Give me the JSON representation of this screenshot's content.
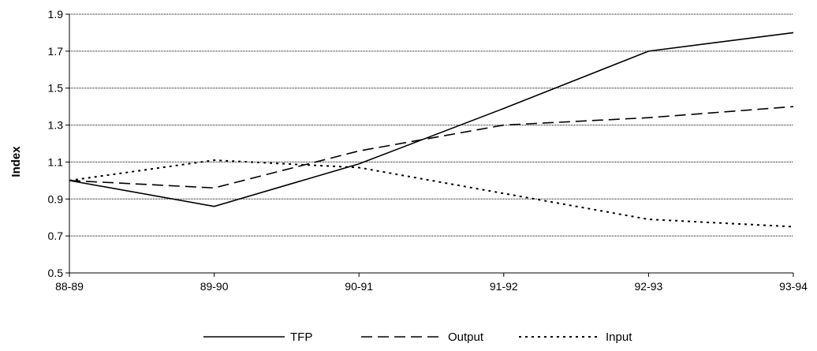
{
  "chart_data": {
    "type": "line",
    "title": "",
    "xlabel": "",
    "ylabel": "Index",
    "categories": [
      "88-89",
      "89-90",
      "90-91",
      "91-92",
      "92-93",
      "93-94"
    ],
    "ylim": [
      0.5,
      1.9
    ],
    "yticks": [
      "0.5",
      "0.7",
      "0.9",
      "1.1",
      "1.3",
      "1.5",
      "1.7",
      "1.9"
    ],
    "grid": true,
    "legend_position": "bottom",
    "series": [
      {
        "name": "TFP",
        "values": [
          1.0,
          0.86,
          1.09,
          1.39,
          1.7,
          1.8
        ],
        "style": "solid",
        "color": "#000000"
      },
      {
        "name": "Output",
        "values": [
          1.0,
          0.96,
          1.16,
          1.3,
          1.34,
          1.4
        ],
        "style": "dashed",
        "color": "#000000"
      },
      {
        "name": "Input",
        "values": [
          1.0,
          1.11,
          1.07,
          0.93,
          0.79,
          0.75
        ],
        "style": "dotted",
        "color": "#000000"
      }
    ]
  }
}
